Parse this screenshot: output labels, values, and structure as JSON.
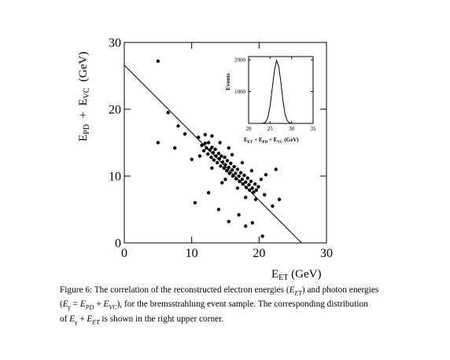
{
  "chart_data": {
    "type": "scatter",
    "x_label": [
      "E",
      "ET",
      " (GeV)"
    ],
    "y_label": [
      "E",
      "PD",
      "  +  E",
      "VC",
      "  (GeV)"
    ],
    "xlim": [
      0,
      30
    ],
    "ylim": [
      0,
      30
    ],
    "xticks": [
      0,
      10,
      20,
      30
    ],
    "yticks": [
      0,
      10,
      20,
      30
    ],
    "color": "#000000",
    "x": [
      11.5,
      11.8,
      12.0,
      12.2,
      12.4,
      12.5,
      12.7,
      12.9,
      13.0,
      13.2,
      13.3,
      13.5,
      13.6,
      13.8,
      14.0,
      14.1,
      14.3,
      14.4,
      14.6,
      14.8,
      14.9,
      15.0,
      15.2,
      15.3,
      15.5,
      15.6,
      15.8,
      16.0,
      16.1,
      16.3,
      16.5,
      16.6,
      16.8,
      17.0,
      17.1,
      17.3,
      17.5,
      17.6,
      17.8,
      18.0,
      18.1,
      18.3,
      18.5,
      18.6,
      18.8,
      19.0,
      19.2,
      19.4,
      19.6,
      19.9,
      11.0,
      11.2,
      12.0,
      13.0,
      14.2,
      15.0,
      16.0,
      16.8,
      17.5,
      18.0,
      18.9,
      19.5,
      20.3,
      20.8,
      21.0,
      14.5,
      13.0,
      15.5,
      5.0,
      6.5,
      8.0,
      5.0,
      7.5,
      9.0,
      10.0,
      12.5,
      14.0,
      17.0,
      19.0,
      22.0,
      20.5,
      22.5,
      10.5,
      15.5,
      18.0,
      23.0
    ],
    "values": [
      14.6,
      13.8,
      14.9,
      14.2,
      13.3,
      15.0,
      13.9,
      12.8,
      14.3,
      13.5,
      12.4,
      14.0,
      13.0,
      12.0,
      13.4,
      12.6,
      11.5,
      13.0,
      12.1,
      11.2,
      12.8,
      11.7,
      10.8,
      12.3,
      11.3,
      10.4,
      11.9,
      10.9,
      10.0,
      11.4,
      10.4,
      9.6,
      11.0,
      10.0,
      9.2,
      10.5,
      9.5,
      8.8,
      10.1,
      9.1,
      8.3,
      9.7,
      8.7,
      7.9,
      9.2,
      8.2,
      7.6,
      8.8,
      7.9,
      8.4,
      15.8,
      13.0,
      16.2,
      11.2,
      15.0,
      9.5,
      13.2,
      8.2,
      12.0,
      6.8,
      10.8,
      6.5,
      9.5,
      7.2,
      10.2,
      9.0,
      16.0,
      14.2,
      27.2,
      19.5,
      17.5,
      15.0,
      14.2,
      16.3,
      12.5,
      7.5,
      5.0,
      4.2,
      3.0,
      5.5,
      1.0,
      11.0,
      6.0,
      3.2,
      2.5,
      6.5
    ],
    "line": {
      "x": [
        0,
        26.3
      ],
      "values": [
        26.6,
        0
      ]
    },
    "inset": {
      "type": "line",
      "y_label": "Events",
      "x_label": [
        "E",
        "ET",
        " + E",
        "PD",
        " + E",
        "VC",
        " (GeV)"
      ],
      "xlim": [
        20,
        35
      ],
      "ylim": [
        0,
        2100
      ],
      "xticks": [
        20,
        25,
        30,
        35
      ],
      "yticks": [
        1000,
        2000
      ],
      "x": [
        23,
        23.5,
        24,
        24.5,
        25,
        25.5,
        26,
        26.5,
        27,
        27.5,
        28,
        28.5,
        29,
        29.5,
        30
      ],
      "values": [
        0,
        10,
        50,
        200,
        550,
        1100,
        1650,
        1980,
        1800,
        1300,
        700,
        280,
        80,
        20,
        0
      ]
    }
  },
  "caption": [
    [
      "Figure 6:  The correlation of the reconstructed electron energies (",
      "E",
      "ET",
      ") and photon energies"
    ],
    [
      "(",
      "E",
      "γ",
      " = ",
      "E",
      "PD",
      " + ",
      "E",
      "VC",
      "), for the bremsstrahlung event sample.  The corresponding distribution"
    ],
    [
      "of ",
      "E",
      "γ",
      " + ",
      "E",
      "ET",
      " is shown in the right upper corner."
    ]
  ]
}
